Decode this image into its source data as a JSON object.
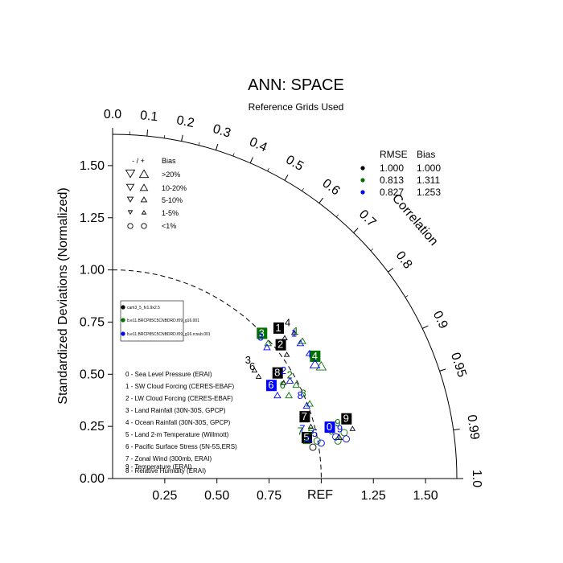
{
  "chart_data": {
    "type": "scatter",
    "subtype": "taylor-diagram",
    "title": "ANN: SPACE",
    "subtitle": "Reference Grids Used",
    "ylabel": "Standardized Deviations (Normalized)",
    "corr_label": "Correlation",
    "ref_label": "REF",
    "std_range": [
      0,
      1.65
    ],
    "y_ticks": [
      "0.00",
      "0.25",
      "0.50",
      "0.75",
      "1.00",
      "1.25",
      "1.50"
    ],
    "x_ticks": [
      "0.25",
      "0.50",
      "0.75",
      "1.25",
      "1.50"
    ],
    "corr_ticks": [
      "0.0",
      "0.1",
      "0.2",
      "0.3",
      "0.4",
      "0.5",
      "0.6",
      "0.7",
      "0.8",
      "0.9",
      "0.95",
      "0.99",
      "1.0"
    ],
    "corr_values": [
      0.0,
      0.1,
      0.2,
      0.3,
      0.4,
      0.5,
      0.6,
      0.7,
      0.8,
      0.9,
      0.95,
      0.99,
      1.0
    ],
    "bias_legend": {
      "header_sign": "- / +",
      "header_label": "Bias",
      "rows": [
        ">20%",
        "10-20%",
        "5-10%",
        "1-5%",
        "<1%"
      ]
    },
    "stats_table": {
      "headers": [
        "RMSE",
        "Bias"
      ],
      "rows": [
        {
          "color": "#000000",
          "rmse": "1.000",
          "bias": "1.000"
        },
        {
          "color": "#007000",
          "rmse": "0.813",
          "bias": "1.311"
        },
        {
          "color": "#0000ff",
          "rmse": "0.827",
          "bias": "1.253"
        }
      ]
    },
    "cases": [
      {
        "name": "cam3_5_fv1.9x2.5",
        "color": "#000000"
      },
      {
        "name": "b.e11.BRCP85C5CNBDRD.f09_g16.001",
        "color": "#007000"
      },
      {
        "name": "b.e11.BRCP85C5CNBDRD.f09_g16.rcsub.001",
        "color": "#0000ff"
      }
    ],
    "variables": [
      "0 - Sea Level Pressure (ERAI)",
      "1 - SW Cloud Forcing (CERES-EBAF)",
      "2 - LW Cloud Forcing (CERES-EBAF)",
      "3 - Land Rainfall (30N-30S, GPCP)",
      "4 - Ocean Rainfall (30N-30S, GPCP)",
      "5 - Land 2-m Temperature (Willmott)",
      "6 - Pacific Surface Stress (5N-5S,ERS)",
      "7 - Zonal Wind (300mb, ERAI)",
      "8 - Relative Humidity (ERAI)",
      "9 - Temperature (ERAI)"
    ],
    "points": [
      {
        "case": 0,
        "var": "0",
        "x": 1.085,
        "y": 0.2,
        "boxed": false,
        "marker": "tri-up",
        "size": 4
      },
      {
        "case": 0,
        "var": "1",
        "x": 0.825,
        "y": 0.675,
        "boxed": true,
        "marker": "tri-up",
        "size": 3
      },
      {
        "case": 0,
        "var": "2",
        "x": 0.835,
        "y": 0.595,
        "boxed": true,
        "marker": "tri-up",
        "size": 3
      },
      {
        "case": 0,
        "var": "3",
        "x": 0.68,
        "y": 0.52,
        "boxed": false,
        "marker": "tri-up",
        "size": 3
      },
      {
        "case": 0,
        "var": "4",
        "x": 0.87,
        "y": 0.7,
        "boxed": false,
        "marker": "tri-up",
        "size": 3
      },
      {
        "case": 0,
        "var": "5",
        "x": 0.96,
        "y": 0.15,
        "boxed": true,
        "marker": "circle",
        "size": 4
      },
      {
        "case": 0,
        "var": "6",
        "x": 0.7,
        "y": 0.49,
        "boxed": false,
        "marker": "tri-up",
        "size": 3
      },
      {
        "case": 0,
        "var": "7",
        "x": 0.95,
        "y": 0.25,
        "boxed": true,
        "marker": "tri-up",
        "size": 3
      },
      {
        "case": 0,
        "var": "8",
        "x": 0.82,
        "y": 0.46,
        "boxed": true,
        "marker": "tri-up",
        "size": 3
      },
      {
        "case": 0,
        "var": "9",
        "x": 1.15,
        "y": 0.24,
        "boxed": true,
        "marker": "tri-up",
        "size": 3
      },
      {
        "case": 1,
        "var": "0",
        "x": 1.08,
        "y": 0.18,
        "boxed": false,
        "marker": "circle",
        "size": 4
      },
      {
        "case": 1,
        "var": "1",
        "x": 0.91,
        "y": 0.66,
        "boxed": false,
        "marker": "tri-up",
        "size": 4
      },
      {
        "case": 1,
        "var": "2",
        "x": 0.88,
        "y": 0.45,
        "boxed": false,
        "marker": "tri-up",
        "size": 4
      },
      {
        "case": 1,
        "var": "3",
        "x": 0.745,
        "y": 0.65,
        "boxed": true,
        "marker": "tri-up",
        "size": 4
      },
      {
        "case": 1,
        "var": "4",
        "x": 1.0,
        "y": 0.54,
        "boxed": true,
        "marker": "tri-up",
        "size": 6
      },
      {
        "case": 1,
        "var": "5",
        "x": 0.98,
        "y": 0.18,
        "boxed": false,
        "marker": "circle",
        "size": 4
      },
      {
        "case": 1,
        "var": "6",
        "x": 0.845,
        "y": 0.4,
        "boxed": false,
        "marker": "tri-up",
        "size": 4
      },
      {
        "case": 1,
        "var": "7",
        "x": 0.93,
        "y": 0.18,
        "boxed": false,
        "marker": "tri-up",
        "size": 4
      },
      {
        "case": 1,
        "var": "8",
        "x": 0.945,
        "y": 0.36,
        "boxed": false,
        "marker": "tri-up",
        "size": 4
      },
      {
        "case": 1,
        "var": "9",
        "x": 1.11,
        "y": 0.22,
        "boxed": false,
        "marker": "circle",
        "size": 4
      },
      {
        "case": 2,
        "var": "0",
        "x": 1.07,
        "y": 0.2,
        "boxed": true,
        "marker": "circle",
        "size": 4
      },
      {
        "case": 2,
        "var": "1",
        "x": 0.9,
        "y": 0.65,
        "boxed": false,
        "marker": "tri-up",
        "size": 4
      },
      {
        "case": 2,
        "var": "2",
        "x": 0.85,
        "y": 0.47,
        "boxed": false,
        "marker": "tri-up",
        "size": 4
      },
      {
        "case": 2,
        "var": "3",
        "x": 0.74,
        "y": 0.63,
        "boxed": false,
        "marker": "tri-up",
        "size": 4
      },
      {
        "case": 2,
        "var": "4",
        "x": 0.97,
        "y": 0.55,
        "boxed": false,
        "marker": "tri-up",
        "size": 6
      },
      {
        "case": 2,
        "var": "5",
        "x": 1.0,
        "y": 0.17,
        "boxed": false,
        "marker": "circle",
        "size": 4
      },
      {
        "case": 2,
        "var": "6",
        "x": 0.79,
        "y": 0.4,
        "boxed": true,
        "marker": "tri-up",
        "size": 4
      },
      {
        "case": 2,
        "var": "7",
        "x": 0.94,
        "y": 0.19,
        "boxed": false,
        "marker": "tri-up",
        "size": 4
      },
      {
        "case": 2,
        "var": "8",
        "x": 0.93,
        "y": 0.35,
        "boxed": false,
        "marker": "tri-up",
        "size": 4
      },
      {
        "case": 2,
        "var": "9",
        "x": 1.12,
        "y": 0.19,
        "boxed": false,
        "marker": "circle",
        "size": 4
      }
    ]
  }
}
